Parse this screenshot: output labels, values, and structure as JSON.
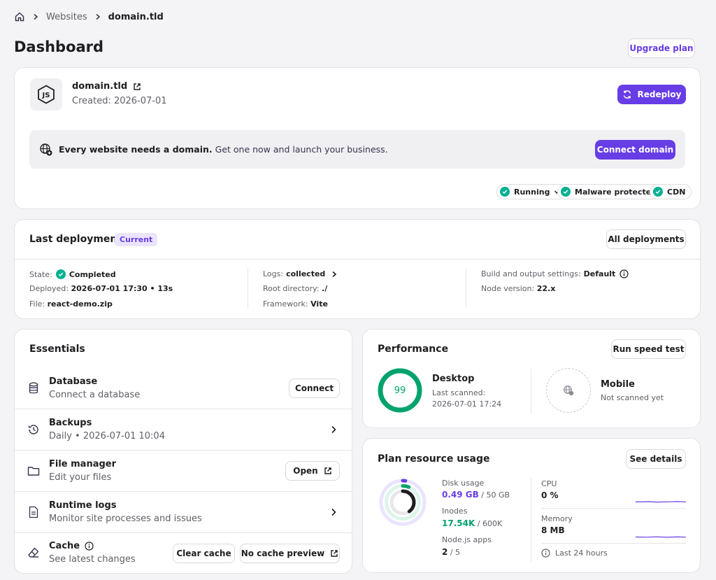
{
  "breadcrumb": {
    "home_icon": "home-icon",
    "items": [
      "Websites",
      "domain.tld"
    ]
  },
  "page_title": "Dashboard",
  "upgrade_plan": "Upgrade plan",
  "site": {
    "domain": "domain.tld",
    "created": "Created: 2026-07-01",
    "redeploy": "Redeploy"
  },
  "domain_banner": {
    "bold": "Every website needs a domain.",
    "text": " Get one now and launch your business.",
    "button": "Connect domain"
  },
  "status_chips": [
    "Running",
    "Malware protected",
    "CDN"
  ],
  "deployment": {
    "title": "Last deployment",
    "badge": "Current",
    "all_button": "All deployments",
    "state_label": "State:",
    "state_value": "Completed",
    "deployed_label": "Deployed:",
    "deployed_value": "2026-07-01 17:30 • 13s",
    "file_label": "File:",
    "file_value": "react-demo.zip",
    "logs_label": "Logs:",
    "logs_value": "collected",
    "root_label": "Root directory:",
    "root_value": "./",
    "framework_label": "Framework:",
    "framework_value": "Vite",
    "build_label": "Build and output settings:",
    "build_value": "Default",
    "node_label": "Node version:",
    "node_value": "22.x"
  },
  "essentials": {
    "title": "Essentials",
    "database": {
      "title": "Database",
      "sub": "Connect a database",
      "button": "Connect"
    },
    "backups": {
      "title": "Backups",
      "sub": "Daily • 2026-07-01 10:04"
    },
    "file_manager": {
      "title": "File manager",
      "sub": "Edit your files",
      "button": "Open"
    },
    "runtime_logs": {
      "title": "Runtime logs",
      "sub": "Monitor site processes and issues"
    },
    "cache": {
      "title": "Cache",
      "sub": "See latest changes",
      "clear": "Clear cache",
      "preview": "No cache preview"
    }
  },
  "performance": {
    "title": "Performance",
    "button": "Run speed test",
    "desktop": {
      "score": "99",
      "score_value": 99,
      "title": "Desktop",
      "line1": "Last scanned:",
      "line2": "2026-07-01 17:24"
    },
    "mobile": {
      "title": "Mobile",
      "sub": "Not scanned yet"
    }
  },
  "resources": {
    "title": "Plan resource usage",
    "button": "See details",
    "disk_label": "Disk usage",
    "disk_used": "0.49 GB",
    "disk_total": " / 50 GB",
    "inodes_label": "Inodes",
    "inodes_used": "17.54K",
    "inodes_total": " / 600K",
    "node_label": "Node.js apps",
    "node_used": "2",
    "node_total": " / 5",
    "cpu_label": "CPU",
    "cpu_value": "0 %",
    "memory_label": "Memory",
    "memory_value": "8 MB",
    "footer": "Last 24 hours"
  },
  "colors": {
    "accent": "#673de6",
    "success": "#00b090",
    "text": "#1d1e20"
  }
}
